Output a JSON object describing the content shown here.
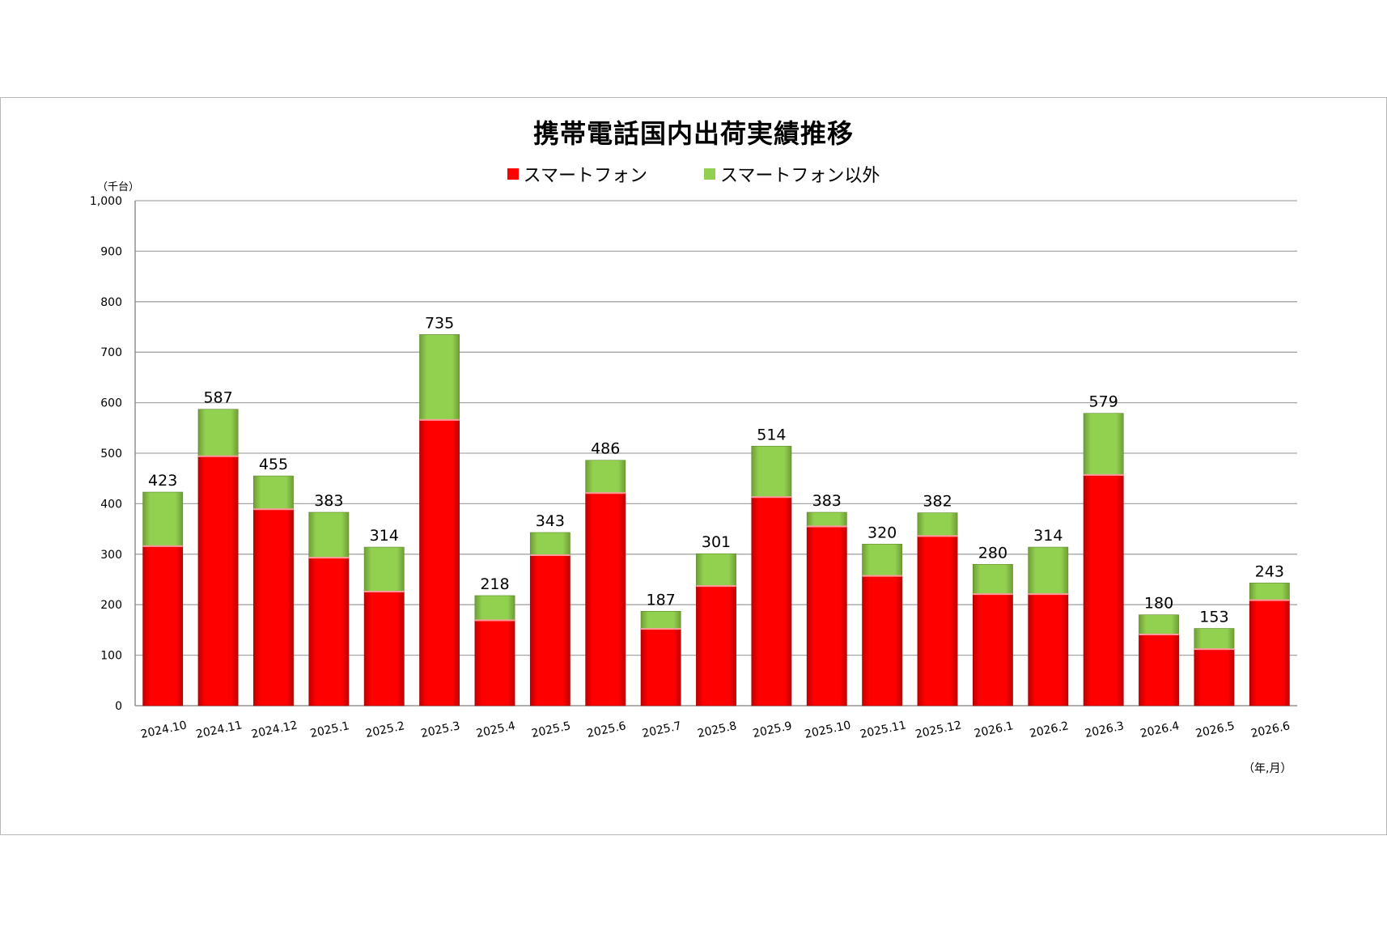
{
  "title": "携帯電話国内出荷実績推移",
  "legend": {
    "smartphone": "スマートフォン",
    "other": "スマートフォン以外"
  },
  "y_unit": "（千台）",
  "x_unit": "（年,月）",
  "colors": {
    "smartphone": "#ff0000",
    "other": "#92d050"
  },
  "chart_data": {
    "type": "bar",
    "stacked": true,
    "categories": [
      "2024.10",
      "2024.11",
      "2024.12",
      "2025.1",
      "2025.2",
      "2025.3",
      "2025.4",
      "2025.5",
      "2025.6",
      "2025.7",
      "2025.8",
      "2025.9",
      "2025.10",
      "2025.11",
      "2025.12",
      "2026.1",
      "2026.2",
      "2026.3",
      "2026.4",
      "2026.5",
      "2026.6"
    ],
    "series": [
      {
        "name": "スマートフォン",
        "values": [
          316,
          494,
          389,
          293,
          226,
          566,
          169,
          298,
          421,
          152,
          237,
          413,
          355,
          257,
          336,
          221,
          221,
          457,
          141,
          112,
          209
        ]
      },
      {
        "name": "スマートフォン以外",
        "values": [
          107,
          93,
          66,
          90,
          88,
          169,
          49,
          45,
          65,
          35,
          64,
          101,
          28,
          63,
          46,
          59,
          93,
          122,
          39,
          41,
          34
        ]
      }
    ],
    "totals": [
      423,
      587,
      455,
      383,
      314,
      735,
      218,
      343,
      486,
      187,
      301,
      514,
      383,
      320,
      382,
      280,
      314,
      579,
      180,
      153,
      243
    ],
    "y_ticks": [
      "0",
      "100",
      "200",
      "300",
      "400",
      "500",
      "600",
      "700",
      "800",
      "900",
      "1,000"
    ],
    "ylim": [
      0,
      1000
    ],
    "grid": true,
    "legend_position": "top"
  }
}
